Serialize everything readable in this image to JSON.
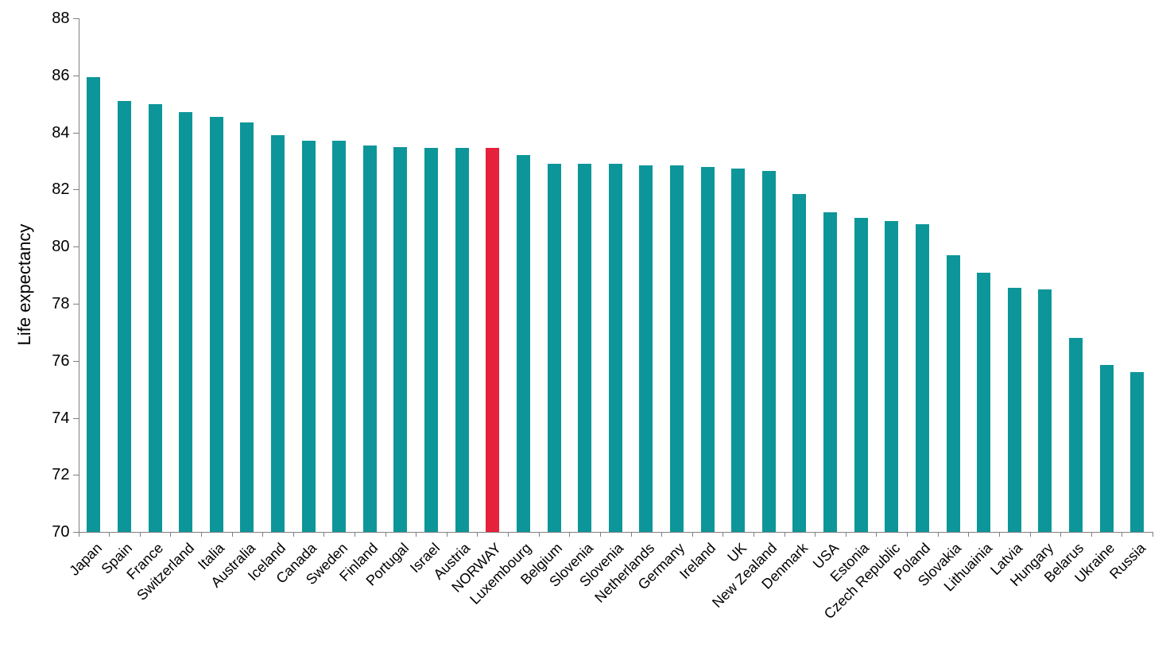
{
  "chart_data": {
    "type": "bar",
    "title": "",
    "xlabel": "",
    "ylabel": "Life expectancy",
    "ylim": [
      70,
      88
    ],
    "yticks": [
      70,
      72,
      74,
      76,
      78,
      80,
      82,
      84,
      86,
      88
    ],
    "grid": false,
    "legend": "none",
    "categories": [
      "Japan",
      "Spain",
      "France",
      "Switzerland",
      "Italia",
      "Australia",
      "Iceland",
      "Canada",
      "Sweden",
      "Finland",
      "Portugal",
      "Israel",
      "Austria",
      "NORWAY",
      "Luxembourg",
      "Belgium",
      "Slovenia",
      "Slovenia",
      "Netherlands",
      "Germany",
      "Ireland",
      "UK",
      "New Zealand",
      "Denmark",
      "USA",
      "Estonia",
      "Czech Republic",
      "Poland",
      "Slovakia",
      "Lithuainia",
      "Latvia",
      "Hungary",
      "Belarus",
      "Ukraine",
      "Russia"
    ],
    "values": [
      85.95,
      85.1,
      85.0,
      84.7,
      84.55,
      84.35,
      83.9,
      83.7,
      83.7,
      83.55,
      83.5,
      83.45,
      83.45,
      83.45,
      83.2,
      82.9,
      82.9,
      82.9,
      82.85,
      82.85,
      82.8,
      82.75,
      82.65,
      81.85,
      81.2,
      81.0,
      80.9,
      80.8,
      79.7,
      79.1,
      78.55,
      78.5,
      76.8,
      75.85,
      75.6
    ],
    "highlight_category": "NORWAY",
    "highlight_index": 13,
    "colors": {
      "bar": "#0d9699",
      "highlight": "#e6213c",
      "axis": "#7f7f7f",
      "text": "#000000",
      "background": "#ffffff"
    }
  }
}
